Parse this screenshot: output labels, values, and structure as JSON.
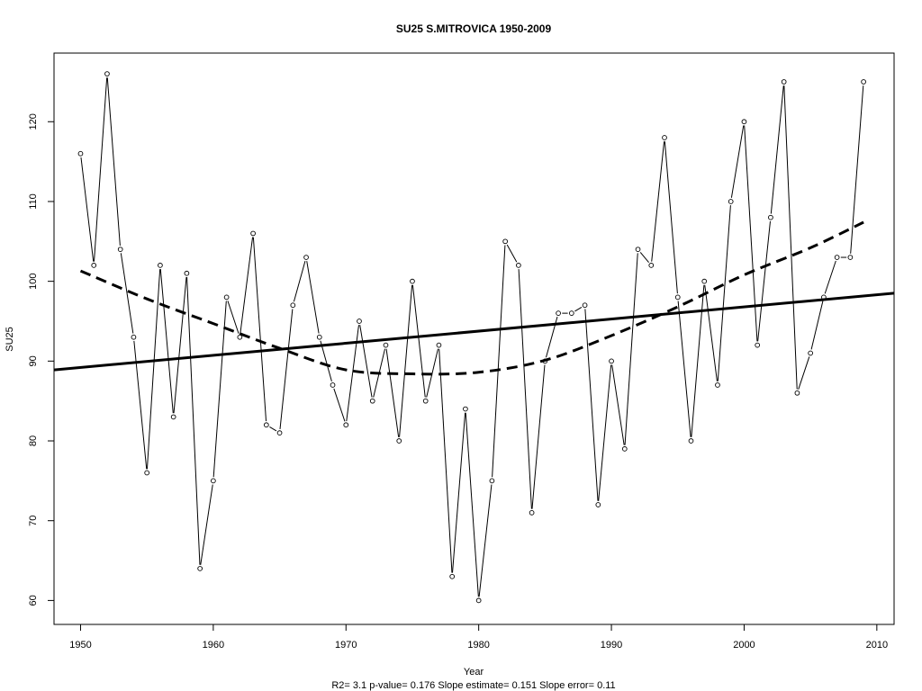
{
  "chart_data": {
    "type": "line",
    "title": "SU25    S.MITROVICA 1950-2009",
    "xlabel": "Year",
    "ylabel": "SU25",
    "subtitle": "R2= 3.1  p-value= 0.176  Slope estimate= 0.151  Slope error= 0.11",
    "xlim": [
      1948,
      2011.3
    ],
    "ylim": [
      57,
      128.6
    ],
    "xticks": [
      1950,
      1960,
      1970,
      1980,
      1990,
      2000,
      2010
    ],
    "yticks": [
      60,
      70,
      80,
      90,
      100,
      110,
      120
    ],
    "grid": false,
    "x": [
      1950,
      1951,
      1952,
      1953,
      1954,
      1955,
      1956,
      1957,
      1958,
      1959,
      1960,
      1961,
      1962,
      1963,
      1964,
      1965,
      1966,
      1967,
      1968,
      1969,
      1970,
      1971,
      1972,
      1973,
      1974,
      1975,
      1976,
      1977,
      1978,
      1979,
      1980,
      1981,
      1982,
      1983,
      1984,
      1985,
      1986,
      1987,
      1988,
      1989,
      1990,
      1991,
      1992,
      1993,
      1994,
      1995,
      1996,
      1997,
      1998,
      1999,
      2000,
      2001,
      2002,
      2003,
      2004,
      2005,
      2006,
      2007,
      2008,
      2009
    ],
    "series": [
      {
        "style": "points-and-lines",
        "values": [
          116,
          102,
          126,
          104,
          93,
          76,
          102,
          83,
          101,
          64,
          75,
          98,
          93,
          106,
          82,
          81,
          97,
          103,
          93,
          87,
          82,
          95,
          85,
          92,
          80,
          100,
          85,
          92,
          63,
          84,
          60,
          75,
          105,
          102,
          71,
          90,
          96,
          96,
          97,
          72,
          90,
          79,
          104,
          102,
          118,
          98,
          80,
          100,
          87,
          110,
          120,
          92,
          108,
          125,
          86,
          91,
          98,
          103,
          103,
          125
        ]
      },
      {
        "style": "solid-trend",
        "x": [
          1948,
          2011.3
        ],
        "values": [
          88.9,
          98.5
        ]
      },
      {
        "style": "dashed-quadratic",
        "x": [
          1950,
          1955,
          1960,
          1965,
          1970,
          1975,
          1980,
          1985,
          1990,
          1995,
          2000,
          2005,
          2009
        ],
        "values": [
          101.3,
          97.8,
          94.7,
          91.6,
          88.9,
          88.4,
          88.6,
          90.1,
          93.2,
          96.8,
          100.8,
          104.2,
          107.4
        ]
      }
    ]
  }
}
